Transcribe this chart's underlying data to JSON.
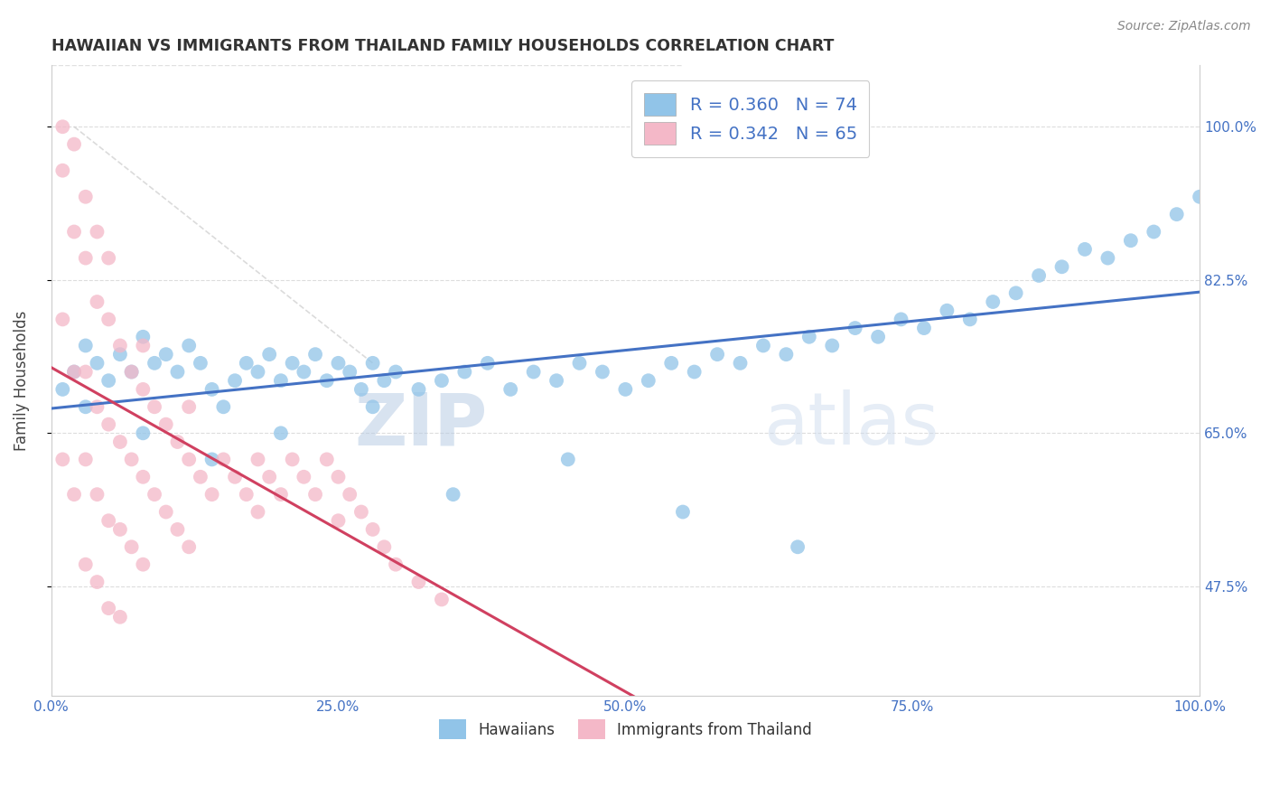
{
  "title": "HAWAIIAN VS IMMIGRANTS FROM THAILAND FAMILY HOUSEHOLDS CORRELATION CHART",
  "source": "Source: ZipAtlas.com",
  "ylabel": "Family Households",
  "xlim": [
    0,
    100
  ],
  "ylim": [
    35,
    107
  ],
  "yticks": [
    47.5,
    65.0,
    82.5,
    100.0
  ],
  "xticks": [
    0,
    25,
    50,
    75,
    100
  ],
  "xtick_labels": [
    "0.0%",
    "25.0%",
    "50.0%",
    "75.0%",
    "100.0%"
  ],
  "ytick_labels": [
    "47.5%",
    "65.0%",
    "82.5%",
    "100.0%"
  ],
  "legend_labels": [
    "Hawaiians",
    "Immigrants from Thailand"
  ],
  "legend_r": [
    0.36,
    0.342
  ],
  "legend_n": [
    74,
    65
  ],
  "blue_color": "#91c4e8",
  "pink_color": "#f4b8c8",
  "blue_line_color": "#4472c4",
  "pink_line_color": "#d04060",
  "watermark_zip": "ZIP",
  "watermark_atlas": "atlas",
  "hawaiians_x": [
    1,
    2,
    3,
    4,
    5,
    6,
    7,
    8,
    9,
    10,
    11,
    12,
    13,
    14,
    15,
    16,
    17,
    18,
    19,
    20,
    21,
    22,
    23,
    24,
    25,
    26,
    27,
    28,
    29,
    30,
    32,
    34,
    36,
    38,
    40,
    42,
    44,
    46,
    48,
    50,
    52,
    54,
    56,
    58,
    60,
    62,
    64,
    66,
    68,
    70,
    72,
    74,
    76,
    78,
    80,
    82,
    84,
    86,
    88,
    90,
    92,
    94,
    96,
    98,
    100,
    3,
    8,
    14,
    20,
    28,
    35,
    45,
    55,
    65
  ],
  "hawaiians_y": [
    70,
    72,
    75,
    73,
    71,
    74,
    72,
    76,
    73,
    74,
    72,
    75,
    73,
    70,
    68,
    71,
    73,
    72,
    74,
    71,
    73,
    72,
    74,
    71,
    73,
    72,
    70,
    73,
    71,
    72,
    70,
    71,
    72,
    73,
    70,
    72,
    71,
    73,
    72,
    70,
    71,
    73,
    72,
    74,
    73,
    75,
    74,
    76,
    75,
    77,
    76,
    78,
    77,
    79,
    78,
    80,
    81,
    83,
    84,
    86,
    85,
    87,
    88,
    90,
    92,
    68,
    65,
    62,
    65,
    68,
    58,
    62,
    56,
    52
  ],
  "thailand_x": [
    1,
    1,
    1,
    2,
    2,
    2,
    3,
    3,
    3,
    3,
    4,
    4,
    4,
    4,
    5,
    5,
    5,
    5,
    6,
    6,
    6,
    6,
    7,
    7,
    7,
    8,
    8,
    8,
    9,
    9,
    10,
    10,
    11,
    11,
    12,
    12,
    13,
    14,
    15,
    16,
    17,
    18,
    19,
    20,
    21,
    22,
    23,
    24,
    25,
    26,
    27,
    28,
    29,
    30,
    32,
    34,
    1,
    2,
    3,
    4,
    5,
    8,
    12,
    18,
    25
  ],
  "thailand_y": [
    95,
    78,
    62,
    88,
    72,
    58,
    85,
    72,
    62,
    50,
    80,
    68,
    58,
    48,
    78,
    66,
    55,
    45,
    75,
    64,
    54,
    44,
    72,
    62,
    52,
    70,
    60,
    50,
    68,
    58,
    66,
    56,
    64,
    54,
    62,
    52,
    60,
    58,
    62,
    60,
    58,
    56,
    60,
    58,
    62,
    60,
    58,
    62,
    60,
    58,
    56,
    54,
    52,
    50,
    48,
    46,
    100,
    98,
    92,
    88,
    85,
    75,
    68,
    62,
    55
  ]
}
